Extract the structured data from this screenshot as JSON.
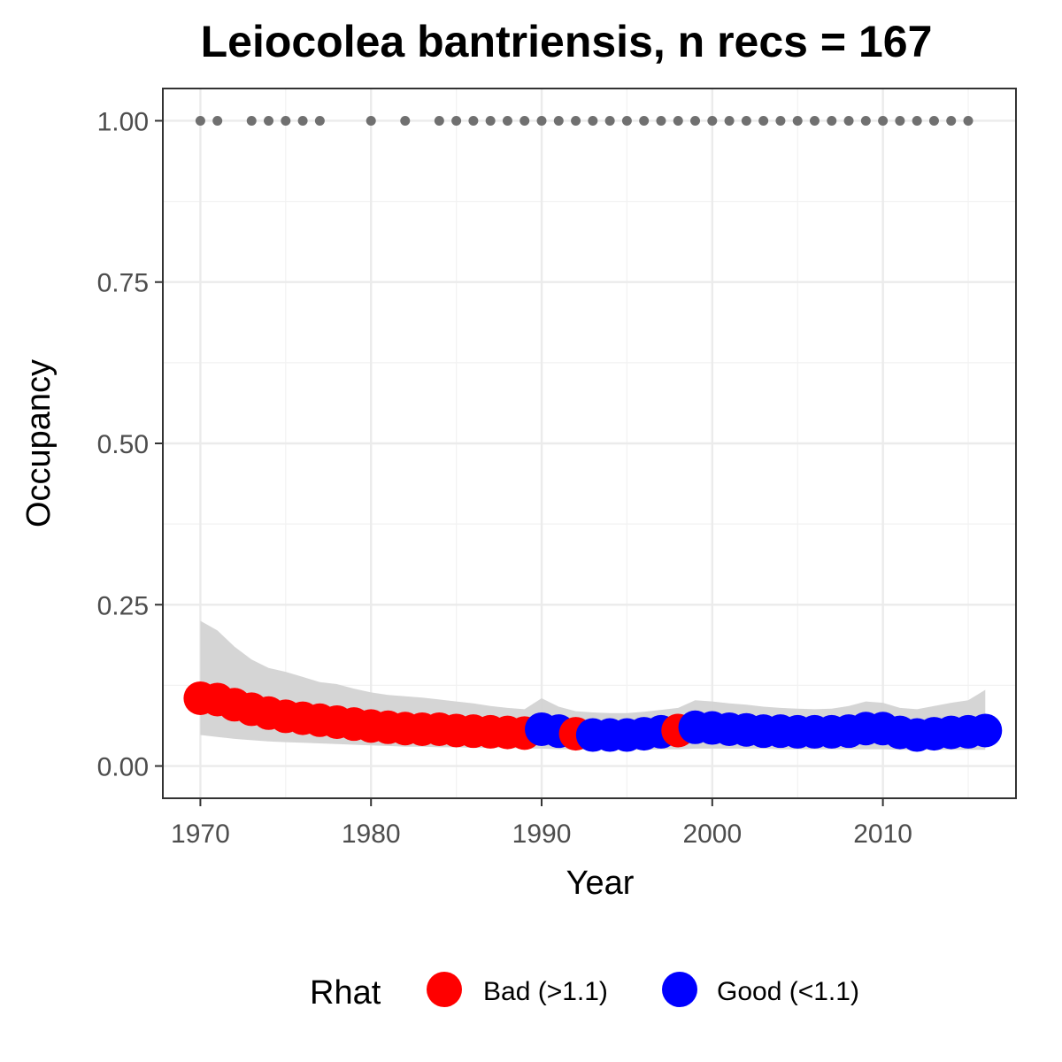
{
  "chart_data": {
    "type": "scatter",
    "title": "Leiocolea bantriensis, n recs = 167",
    "xlabel": "Year",
    "ylabel": "Occupancy",
    "xlim": [
      1967.8,
      2017.8
    ],
    "ylim": [
      -0.05,
      1.05
    ],
    "x_ticks": [
      1970,
      1980,
      1990,
      2000,
      2010
    ],
    "y_ticks": [
      0.0,
      0.25,
      0.5,
      0.75,
      1.0
    ],
    "y_tick_labels": [
      "0.00",
      "0.25",
      "0.50",
      "0.75",
      "1.00"
    ],
    "grid": true,
    "legend": {
      "title": "Rhat",
      "position": "bottom",
      "entries": [
        {
          "label": "Bad (>1.1)",
          "color": "#ff0000"
        },
        {
          "label": "Good (<1.1)",
          "color": "#0000ff"
        }
      ]
    },
    "colors": {
      "Bad": "#ff0000",
      "Good": "#0000ff",
      "ribbon": "#d3d3d3",
      "record": "#707070"
    },
    "series": [
      {
        "name": "Occupancy",
        "x": [
          1970,
          1971,
          1972,
          1973,
          1974,
          1975,
          1976,
          1977,
          1978,
          1979,
          1980,
          1981,
          1982,
          1983,
          1984,
          1985,
          1986,
          1987,
          1988,
          1989,
          1990,
          1991,
          1992,
          1993,
          1994,
          1995,
          1996,
          1997,
          1998,
          1999,
          2000,
          2001,
          2002,
          2003,
          2004,
          2005,
          2006,
          2007,
          2008,
          2009,
          2010,
          2011,
          2012,
          2013,
          2014,
          2015,
          2016
        ],
        "y": [
          0.105,
          0.103,
          0.095,
          0.088,
          0.082,
          0.077,
          0.074,
          0.071,
          0.068,
          0.065,
          0.062,
          0.06,
          0.058,
          0.057,
          0.057,
          0.055,
          0.054,
          0.053,
          0.052,
          0.051,
          0.057,
          0.054,
          0.05,
          0.048,
          0.048,
          0.048,
          0.05,
          0.053,
          0.055,
          0.06,
          0.059,
          0.057,
          0.056,
          0.054,
          0.054,
          0.053,
          0.053,
          0.053,
          0.054,
          0.058,
          0.058,
          0.052,
          0.048,
          0.05,
          0.052,
          0.053,
          0.055
        ],
        "rhat": [
          "Bad",
          "Bad",
          "Bad",
          "Bad",
          "Bad",
          "Bad",
          "Bad",
          "Bad",
          "Bad",
          "Bad",
          "Bad",
          "Bad",
          "Bad",
          "Bad",
          "Bad",
          "Bad",
          "Bad",
          "Bad",
          "Bad",
          "Bad",
          "Good",
          "Good",
          "Bad",
          "Good",
          "Good",
          "Good",
          "Good",
          "Good",
          "Bad",
          "Good",
          "Good",
          "Good",
          "Good",
          "Good",
          "Good",
          "Good",
          "Good",
          "Good",
          "Good",
          "Good",
          "Good",
          "Good",
          "Good",
          "Good",
          "Good",
          "Good",
          "Good"
        ],
        "lower": [
          0.048,
          0.045,
          0.042,
          0.04,
          0.038,
          0.037,
          0.036,
          0.035,
          0.034,
          0.033,
          0.032,
          0.031,
          0.03,
          0.03,
          0.029,
          0.029,
          0.028,
          0.028,
          0.028,
          0.027,
          0.027,
          0.026,
          0.026,
          0.025,
          0.025,
          0.025,
          0.025,
          0.026,
          0.026,
          0.027,
          0.027,
          0.027,
          0.027,
          0.027,
          0.026,
          0.026,
          0.026,
          0.026,
          0.026,
          0.026,
          0.026,
          0.025,
          0.025,
          0.025,
          0.025,
          0.025,
          0.025
        ],
        "upper": [
          0.225,
          0.21,
          0.185,
          0.165,
          0.152,
          0.146,
          0.138,
          0.13,
          0.127,
          0.12,
          0.114,
          0.11,
          0.108,
          0.106,
          0.103,
          0.1,
          0.097,
          0.093,
          0.09,
          0.088,
          0.105,
          0.092,
          0.085,
          0.083,
          0.082,
          0.082,
          0.084,
          0.087,
          0.09,
          0.102,
          0.1,
          0.097,
          0.095,
          0.092,
          0.09,
          0.089,
          0.088,
          0.089,
          0.093,
          0.1,
          0.098,
          0.09,
          0.088,
          0.093,
          0.098,
          0.102,
          0.118
        ]
      },
      {
        "name": "Records",
        "x": [
          1970,
          1971,
          1973,
          1974,
          1975,
          1976,
          1977,
          1980,
          1982,
          1984,
          1985,
          1986,
          1987,
          1988,
          1989,
          1990,
          1991,
          1992,
          1993,
          1994,
          1995,
          1996,
          1997,
          1998,
          1999,
          2000,
          2001,
          2002,
          2003,
          2004,
          2005,
          2006,
          2007,
          2008,
          2009,
          2010,
          2011,
          2012,
          2013,
          2014,
          2015
        ],
        "y": [
          1,
          1,
          1,
          1,
          1,
          1,
          1,
          1,
          1,
          1,
          1,
          1,
          1,
          1,
          1,
          1,
          1,
          1,
          1,
          1,
          1,
          1,
          1,
          1,
          1,
          1,
          1,
          1,
          1,
          1,
          1,
          1,
          1,
          1,
          1,
          1,
          1,
          1,
          1,
          1,
          1
        ]
      }
    ]
  }
}
